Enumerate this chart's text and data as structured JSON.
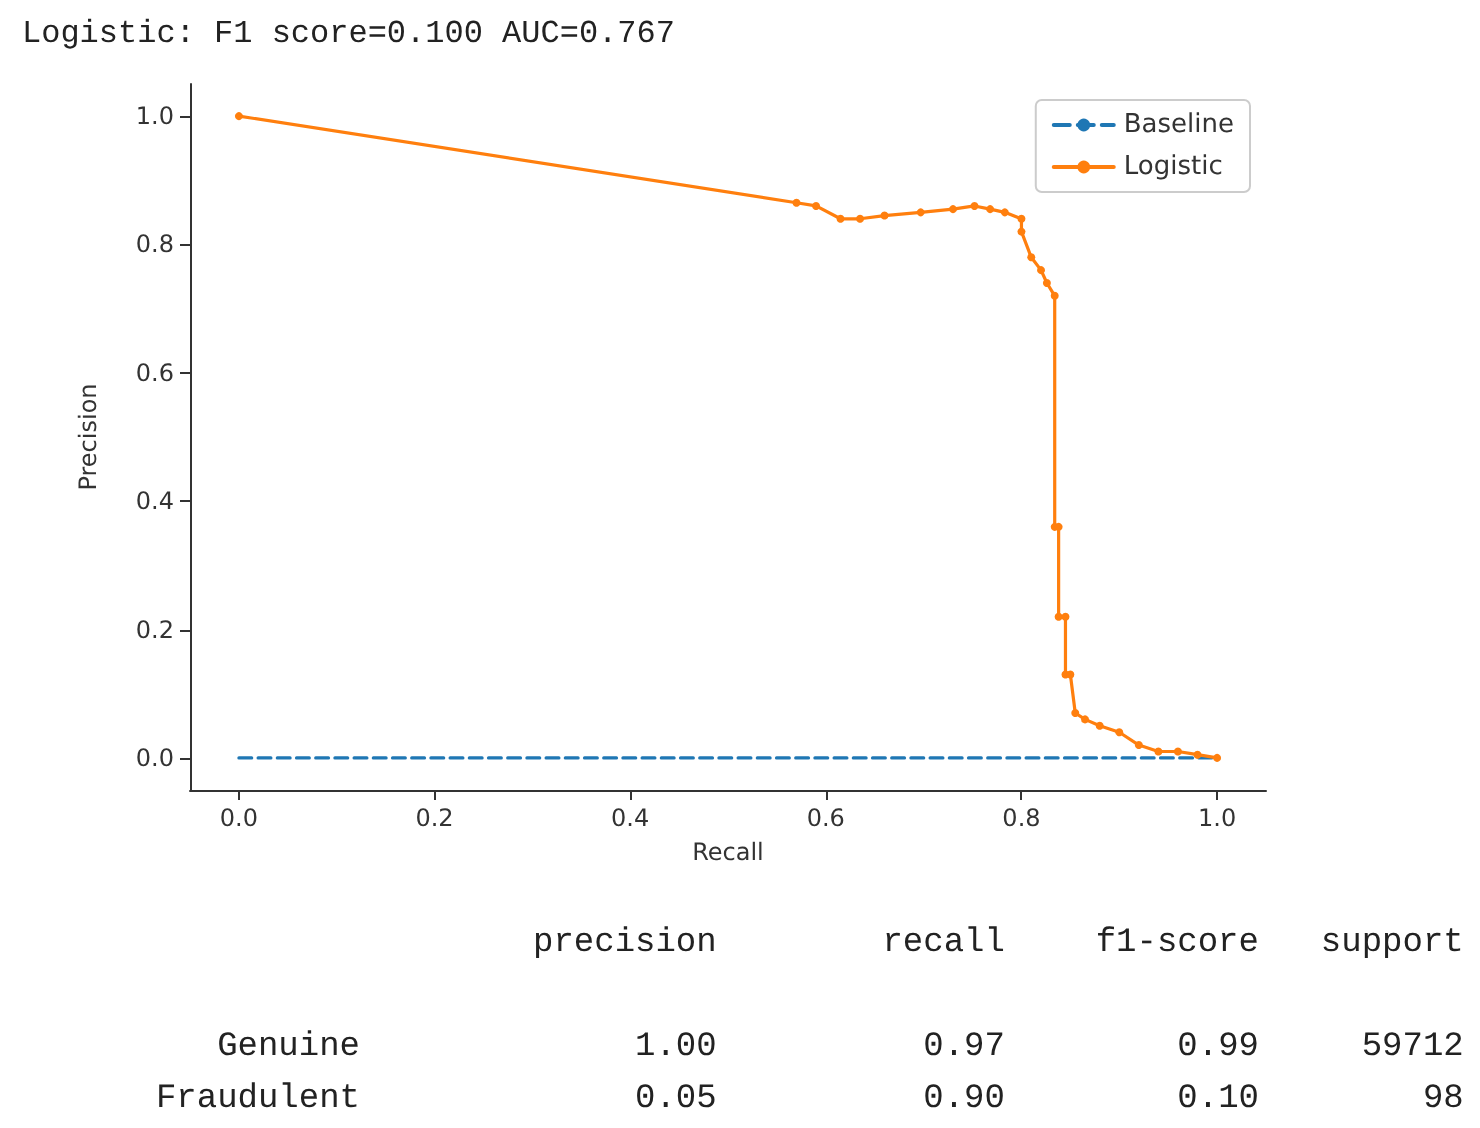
{
  "chart_data": {
    "type": "line",
    "title": "Logistic: F1 score=0.100 AUC=0.767",
    "xlabel": "Recall",
    "ylabel": "Precision",
    "xlim": [
      -0.05,
      1.05
    ],
    "ylim": [
      -0.05,
      1.05
    ],
    "xticks": [
      {
        "value": 0,
        "label": "0.0"
      },
      {
        "value": 0.2,
        "label": "0.2"
      },
      {
        "value": 0.4,
        "label": "0.4"
      },
      {
        "value": 0.6,
        "label": "0.6"
      },
      {
        "value": 0.8,
        "label": "0.8"
      },
      {
        "value": 1.0,
        "label": "1.0"
      }
    ],
    "yticks": [
      {
        "value": 0,
        "label": "0.0"
      },
      {
        "value": 0.2,
        "label": "0.2"
      },
      {
        "value": 0.4,
        "label": "0.4"
      },
      {
        "value": 0.6,
        "label": "0.6"
      },
      {
        "value": 0.8,
        "label": "0.8"
      },
      {
        "value": 1.0,
        "label": "1.0"
      }
    ],
    "grid": false,
    "legend": "top right",
    "series": [
      {
        "name": "Baseline",
        "color": "#1f77b4",
        "line_style": "dashed",
        "marker": "none",
        "x": [
          0,
          1
        ],
        "values": [
          0.0,
          0.0
        ]
      },
      {
        "name": "Logistic",
        "color": "#ff7f0e",
        "line_style": "solid",
        "marker": "circle",
        "x": [
          0,
          0.57,
          0.59,
          0.615,
          0.635,
          0.66,
          0.697,
          0.73,
          0.752,
          0.768,
          0.783,
          0.8,
          0.8,
          0.81,
          0.82,
          0.826,
          0.834,
          0.834,
          0.838,
          0.838,
          0.845,
          0.845,
          0.85,
          0.855,
          0.865,
          0.88,
          0.9,
          0.92,
          0.94,
          0.96,
          0.98,
          1.0
        ],
        "values": [
          1.0,
          0.865,
          0.86,
          0.84,
          0.84,
          0.845,
          0.85,
          0.855,
          0.86,
          0.855,
          0.85,
          0.84,
          0.82,
          0.78,
          0.76,
          0.74,
          0.72,
          0.36,
          0.36,
          0.22,
          0.22,
          0.13,
          0.13,
          0.07,
          0.06,
          0.05,
          0.04,
          0.02,
          0.01,
          0.01,
          0.005,
          0.0
        ]
      }
    ],
    "annotations": [
      "precision recall f1-score support",
      "Genuine 1.00 0.97 0.99 59712",
      "Fraudulent 0.05 0.90 0.10 98"
    ]
  }
}
